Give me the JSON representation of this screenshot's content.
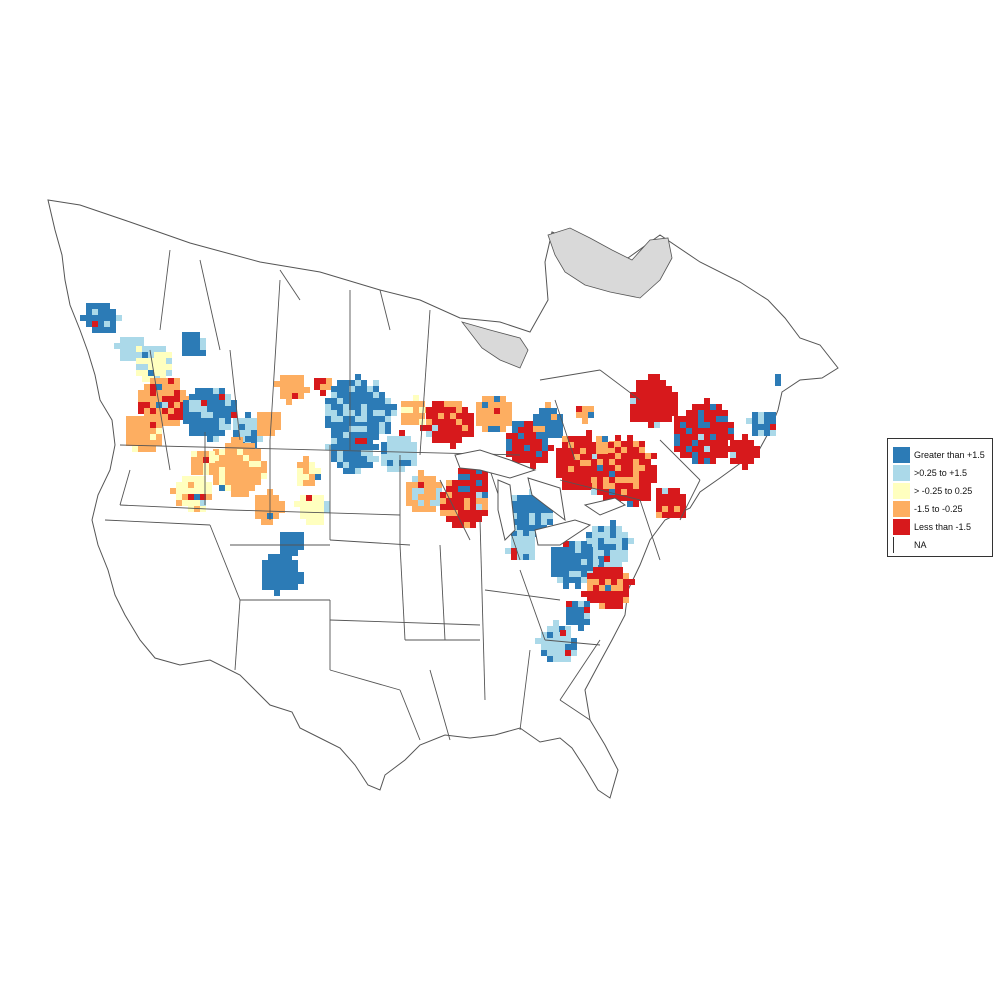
{
  "colors": {
    "gt_1_5": "#2c7bb6",
    "p025_to_1_5": "#abd9e9",
    "m025_to_025": "#ffffbf",
    "m1_5_to_m025": "#fdae61",
    "lt_m1_5": "#d7191c",
    "na_fill": "#ffffff",
    "boundary": "#555555",
    "water_gray": "#d9d9d9"
  },
  "legend": {
    "items": [
      {
        "label": "Greater than +1.5",
        "color": "#2c7bb6"
      },
      {
        "label": ">0.25 to +1.5",
        "color": "#abd9e9"
      },
      {
        "label": "> -0.25 to 0.25",
        "color": "#ffffbf"
      },
      {
        "label": "-1.5 to -0.25",
        "color": "#fdae61"
      },
      {
        "label": "Less than -1.5",
        "color": "#d7191c"
      },
      {
        "label": "NA",
        "color": "#ffffff"
      }
    ]
  }
}
